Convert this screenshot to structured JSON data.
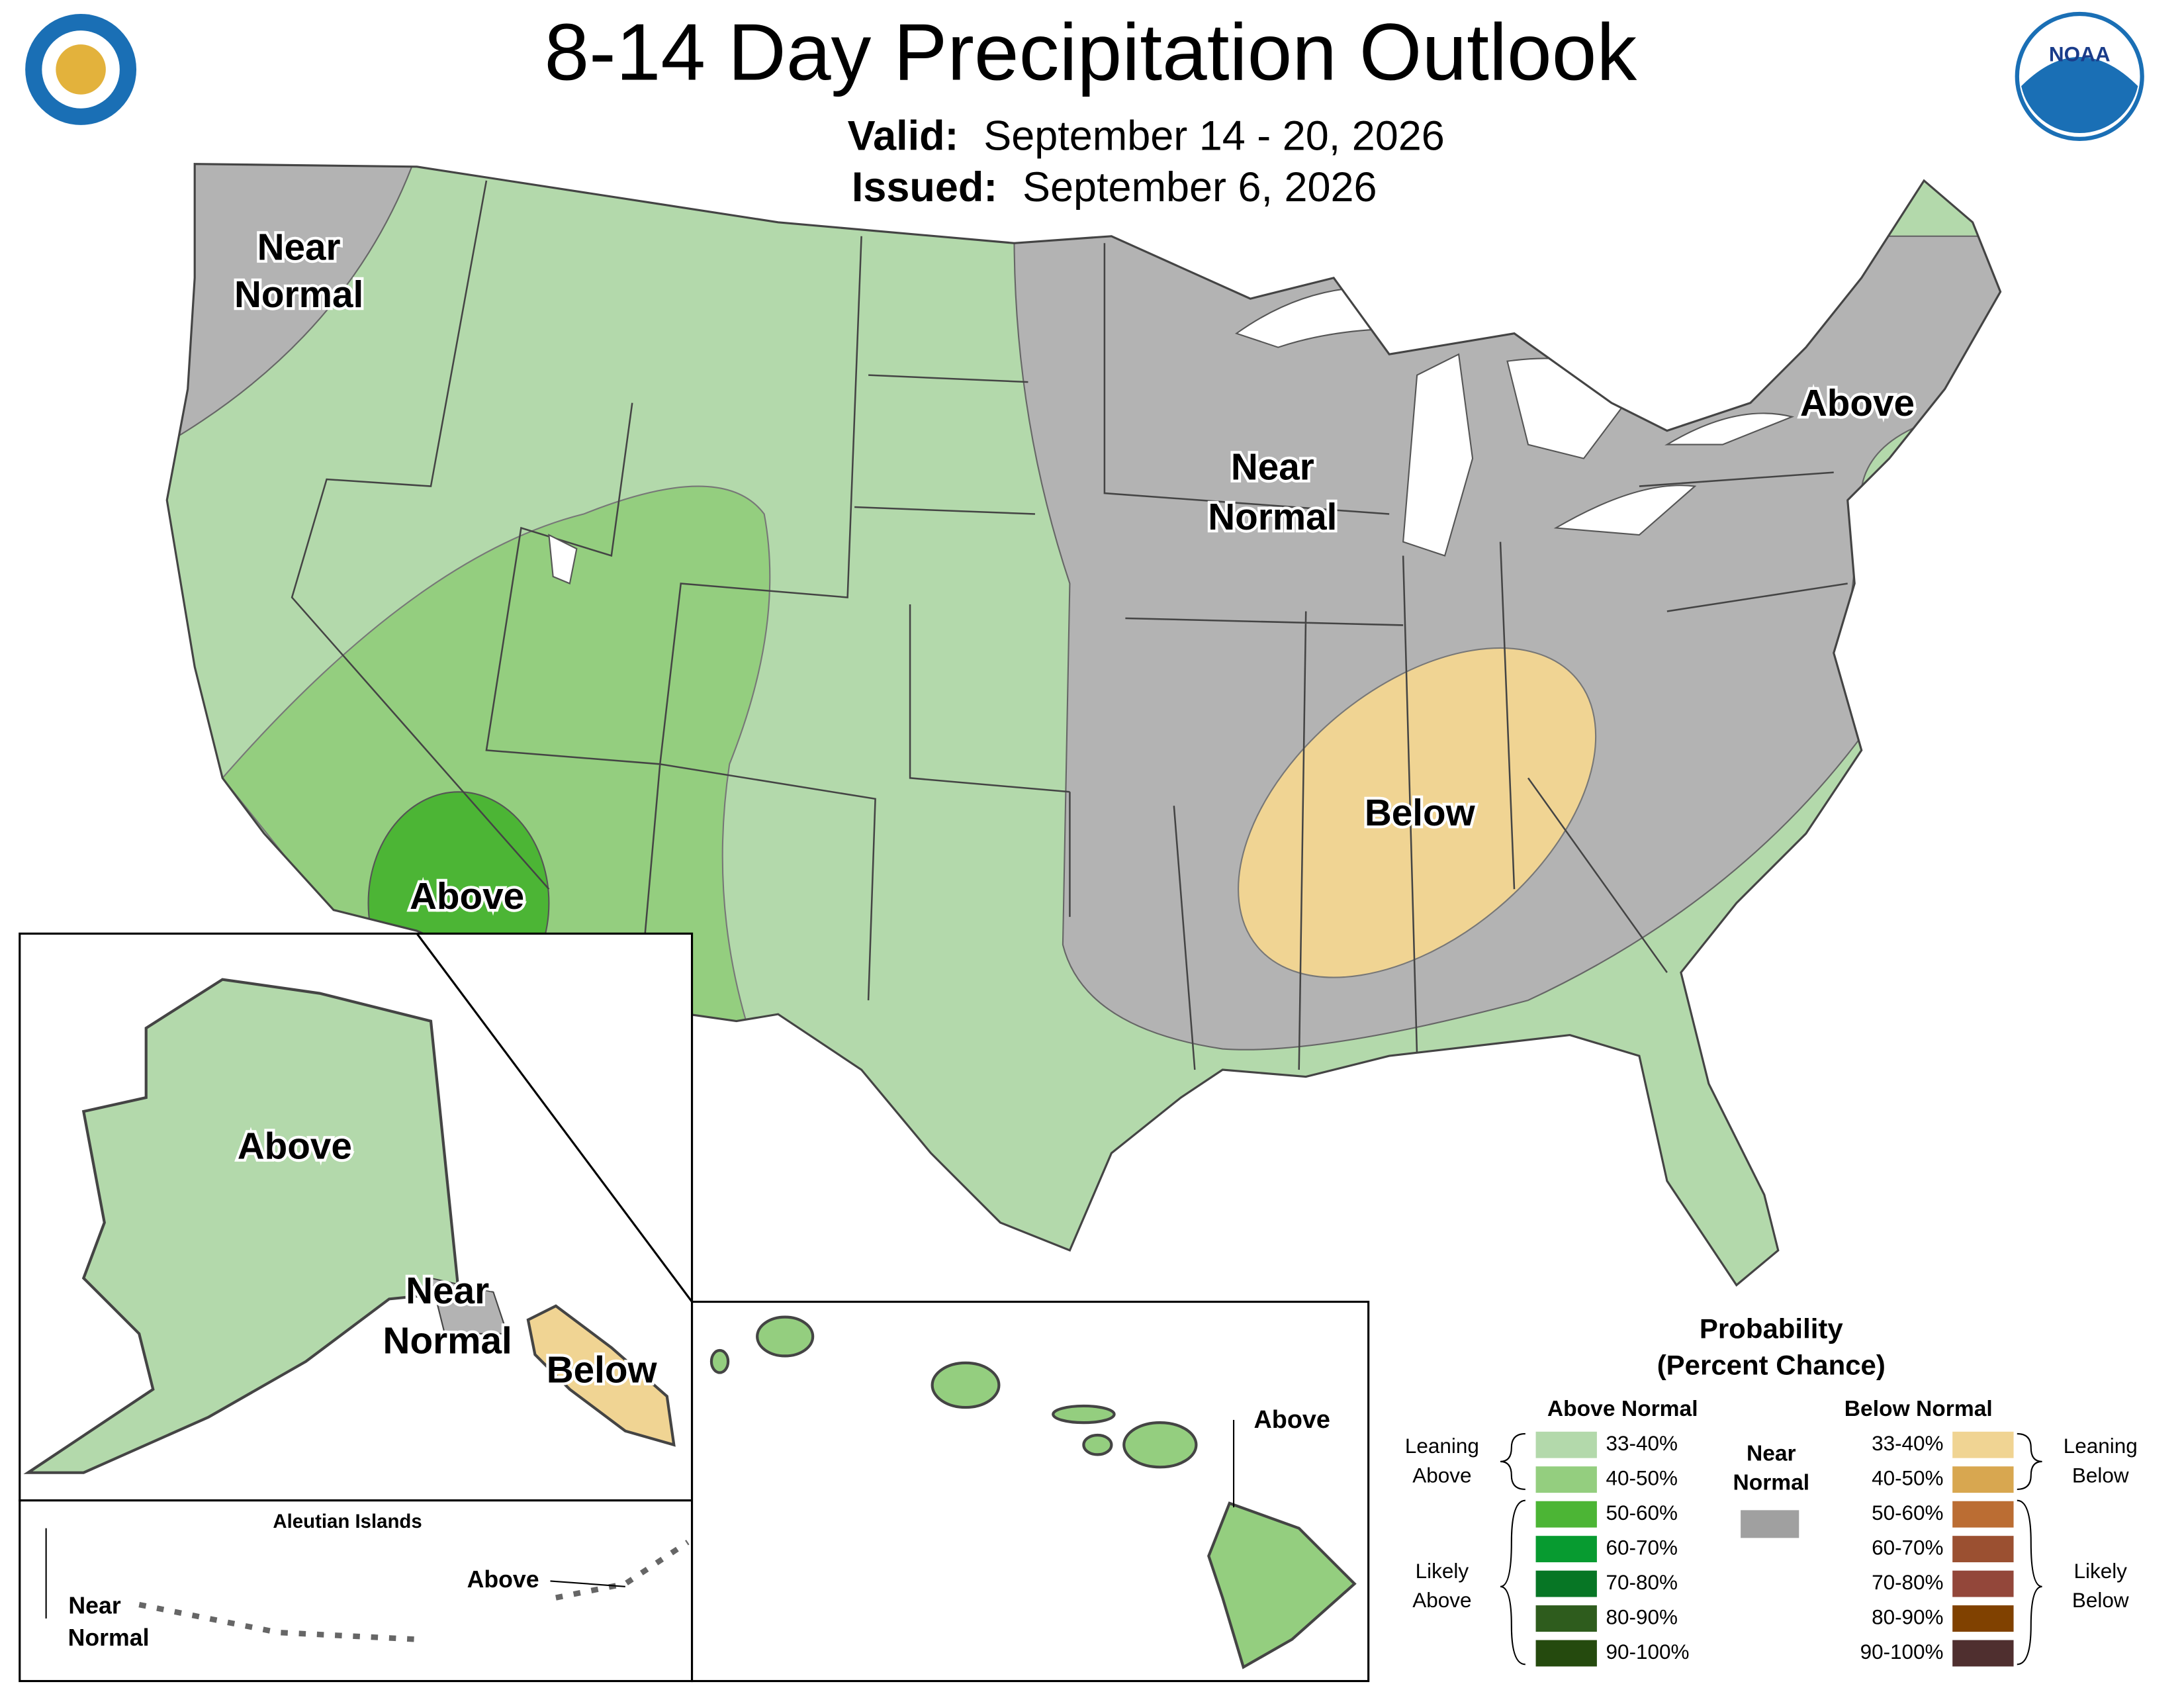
{
  "header": {
    "title": "8-14 Day Precipitation Outlook",
    "valid_label": "Valid:",
    "valid": "September 14 - 20, 2026",
    "issued_label": "Issued:",
    "issued": "September 6, 2026"
  },
  "logos": {
    "noaa": "NOAA"
  },
  "conus_labels": {
    "near_normal_west": [
      "Near",
      "Normal"
    ],
    "near_normal_central": [
      "Near",
      "Normal"
    ],
    "above_northeast": "Above",
    "above_southwest": "Above",
    "below_southeast": "Below"
  },
  "alaska_labels": {
    "above": "Above",
    "near_normal": [
      "Near",
      "Normal"
    ],
    "below": "Below"
  },
  "aleutian_labels": {
    "title": "Aleutian Islands",
    "above": "Above",
    "near_normal": [
      "Near",
      "Normal"
    ]
  },
  "hawaii_labels": {
    "above": "Above"
  },
  "legend": {
    "title": [
      "Probability",
      "(Percent Chance)"
    ],
    "above_header": "Above Normal",
    "below_header": "Below Normal",
    "near_normal": [
      "Near",
      "Normal"
    ],
    "near_color": "#a0a0a0",
    "leaning_above": [
      "Leaning",
      "Above"
    ],
    "likely_above": [
      "Likely",
      "Above"
    ],
    "leaning_below": [
      "Leaning",
      "Below"
    ],
    "likely_below": [
      "Likely",
      "Below"
    ],
    "above": [
      {
        "label": "33-40%",
        "color": "#b3d9ab"
      },
      {
        "label": "40-50%",
        "color": "#94ce7f"
      },
      {
        "label": "50-60%",
        "color": "#4cb535"
      },
      {
        "label": "60-70%",
        "color": "#079b30"
      },
      {
        "label": "70-80%",
        "color": "#077625"
      },
      {
        "label": "80-90%",
        "color": "#2e5c1d"
      },
      {
        "label": "90-100%",
        "color": "#254a0e"
      }
    ],
    "below": [
      {
        "label": "33-40%",
        "color": "#f0d493"
      },
      {
        "label": "40-50%",
        "color": "#d8a750"
      },
      {
        "label": "50-60%",
        "color": "#bb6d33"
      },
      {
        "label": "60-70%",
        "color": "#9b5031"
      },
      {
        "label": "70-80%",
        "color": "#93473a"
      },
      {
        "label": "80-90%",
        "color": "#804100"
      },
      {
        "label": "90-100%",
        "color": "#4f2f2f"
      }
    ]
  }
}
